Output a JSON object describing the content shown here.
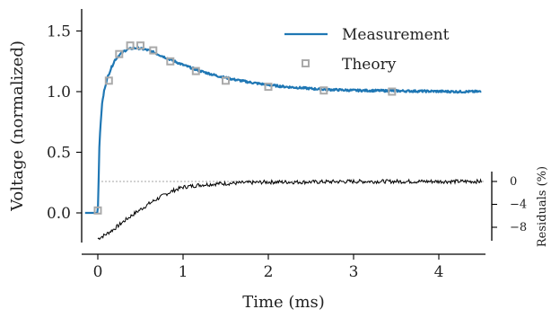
{
  "chart_data": {
    "type": "line",
    "xlabel": "Time (ms)",
    "ylabel": "Voltage (normalized)",
    "xlim": [
      -0.2,
      4.55
    ],
    "ylim": [
      -0.3,
      1.72
    ],
    "x_ticks": [
      0,
      1,
      2,
      3,
      4
    ],
    "y_ticks": [
      0.0,
      0.5,
      1.0,
      1.5
    ],
    "grid": false,
    "legend_position": "top-right",
    "colors": {
      "measurement": "#1f77b4",
      "theory": "#aaaaaa",
      "residuals": "#000000",
      "reference": "#888888"
    },
    "series": [
      {
        "name": "Measurement",
        "type": "line",
        "x": [
          -0.15,
          -0.02,
          0.0,
          0.02,
          0.05,
          0.08,
          0.12,
          0.16,
          0.2,
          0.25,
          0.3,
          0.35,
          0.4,
          0.45,
          0.5,
          0.6,
          0.7,
          0.8,
          0.9,
          1.0,
          1.1,
          1.2,
          1.3,
          1.4,
          1.5,
          1.6,
          1.8,
          2.0,
          2.2,
          2.4,
          2.6,
          2.8,
          3.0,
          3.3,
          3.6,
          3.9,
          4.2,
          4.5
        ],
        "y": [
          0.0,
          0.0,
          0.0,
          0.6,
          0.9,
          1.03,
          1.13,
          1.2,
          1.26,
          1.3,
          1.33,
          1.35,
          1.355,
          1.36,
          1.355,
          1.34,
          1.31,
          1.28,
          1.25,
          1.22,
          1.195,
          1.17,
          1.15,
          1.13,
          1.115,
          1.1,
          1.075,
          1.055,
          1.04,
          1.03,
          1.02,
          1.015,
          1.01,
          1.008,
          1.005,
          1.003,
          1.0,
          1.0
        ]
      },
      {
        "name": "Theory",
        "type": "scatter",
        "x": [
          0.0,
          0.13,
          0.25,
          0.38,
          0.5,
          0.65,
          0.85,
          1.15,
          1.5,
          2.0,
          2.65,
          3.45
        ],
        "y": [
          0.02,
          1.09,
          1.31,
          1.38,
          1.38,
          1.34,
          1.25,
          1.17,
          1.09,
          1.04,
          1.01,
          1.0
        ]
      }
    ],
    "residuals": {
      "ylabel": "Residuals (%)",
      "ylim": [
        -11,
        1.5
      ],
      "y_ticks": [
        0,
        -4,
        -8
      ],
      "reference_value": 0,
      "x": [
        0.0,
        0.1,
        0.2,
        0.3,
        0.4,
        0.5,
        0.6,
        0.7,
        0.8,
        0.9,
        1.0,
        1.2,
        1.4,
        1.6,
        1.8,
        2.0,
        2.5,
        3.0,
        3.5,
        4.0,
        4.5
      ],
      "y": [
        -10.0,
        -9.2,
        -8.2,
        -7.0,
        -5.9,
        -4.9,
        -3.9,
        -3.0,
        -2.2,
        -1.5,
        -1.0,
        -0.6,
        -0.4,
        -0.3,
        -0.2,
        -0.1,
        -0.1,
        0.0,
        0.0,
        0.0,
        0.0
      ]
    }
  }
}
